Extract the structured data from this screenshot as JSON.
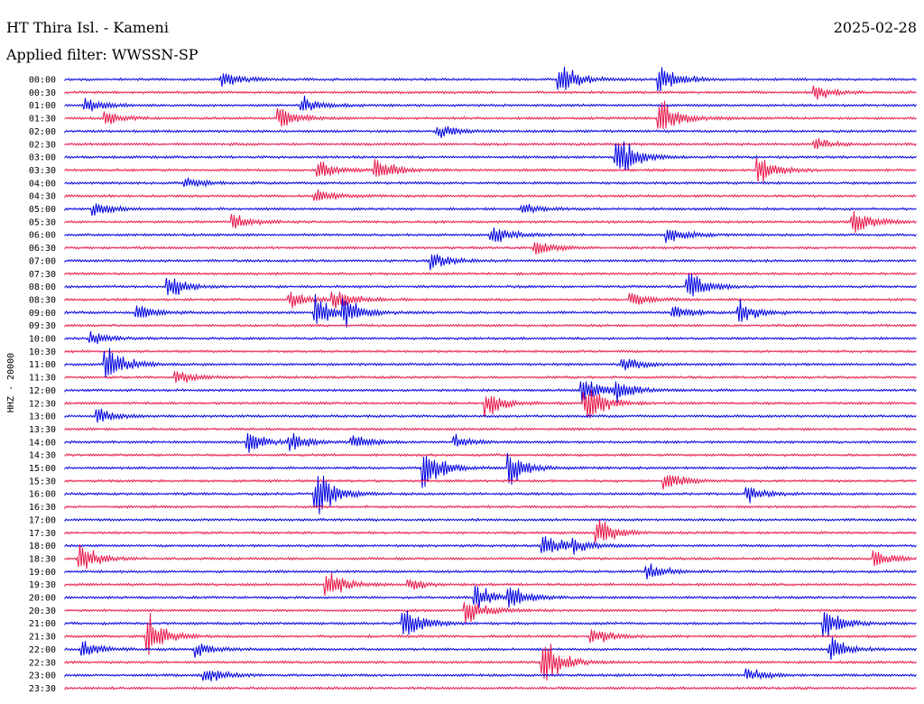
{
  "header": {
    "station": "HT Thira Isl. - Kameni",
    "date": "2025-02-28",
    "filter": "Applied filter: WWSSN-SP"
  },
  "chart_data": {
    "type": "helicorder",
    "ylabel": "HHZ - 20000",
    "row_labels": [
      "00:00",
      "00:30",
      "01:00",
      "01:30",
      "02:00",
      "02:30",
      "03:00",
      "03:30",
      "04:00",
      "04:30",
      "05:00",
      "05:30",
      "06:00",
      "06:30",
      "07:00",
      "07:30",
      "08:00",
      "08:30",
      "09:00",
      "09:30",
      "10:00",
      "10:30",
      "11:00",
      "11:30",
      "12:00",
      "12:30",
      "13:00",
      "13:30",
      "14:00",
      "14:30",
      "15:00",
      "15:30",
      "16:00",
      "16:30",
      "17:00",
      "17:30",
      "18:00",
      "18:30",
      "19:00",
      "19:30",
      "20:00",
      "20:30",
      "21:00",
      "21:30",
      "22:00",
      "22:30",
      "23:00",
      "23:30"
    ],
    "trace_colors": [
      "#0000e0",
      "#e8184a"
    ],
    "minutes_per_row": 30,
    "events": [
      {
        "row": 0,
        "minute": 5.6,
        "amp": 0.8
      },
      {
        "row": 0,
        "minute": 17.5,
        "amp": 1.3
      },
      {
        "row": 0,
        "minute": 21.0,
        "amp": 1.4
      },
      {
        "row": 1,
        "minute": 26.5,
        "amp": 0.6
      },
      {
        "row": 2,
        "minute": 0.8,
        "amp": 0.6
      },
      {
        "row": 2,
        "minute": 8.4,
        "amp": 0.8
      },
      {
        "row": 3,
        "minute": 1.5,
        "amp": 0.6
      },
      {
        "row": 3,
        "minute": 7.6,
        "amp": 1.0
      },
      {
        "row": 3,
        "minute": 21.0,
        "amp": 1.8
      },
      {
        "row": 4,
        "minute": 13.2,
        "amp": 0.6
      },
      {
        "row": 5,
        "minute": 26.5,
        "amp": 0.5
      },
      {
        "row": 6,
        "minute": 19.5,
        "amp": 2.0
      },
      {
        "row": 7,
        "minute": 9.0,
        "amp": 0.8
      },
      {
        "row": 7,
        "minute": 11.0,
        "amp": 1.1
      },
      {
        "row": 7,
        "minute": 24.5,
        "amp": 1.3
      },
      {
        "row": 8,
        "minute": 4.3,
        "amp": 0.5
      },
      {
        "row": 9,
        "minute": 8.9,
        "amp": 0.6
      },
      {
        "row": 10,
        "minute": 1.1,
        "amp": 0.6
      },
      {
        "row": 10,
        "minute": 16.2,
        "amp": 0.5
      },
      {
        "row": 11,
        "minute": 6.0,
        "amp": 0.7
      },
      {
        "row": 11,
        "minute": 27.8,
        "amp": 1.3
      },
      {
        "row": 12,
        "minute": 15.1,
        "amp": 0.8
      },
      {
        "row": 12,
        "minute": 21.3,
        "amp": 0.8
      },
      {
        "row": 13,
        "minute": 16.6,
        "amp": 0.7
      },
      {
        "row": 14,
        "minute": 13.0,
        "amp": 0.7
      },
      {
        "row": 16,
        "minute": 3.7,
        "amp": 1.0
      },
      {
        "row": 16,
        "minute": 22.0,
        "amp": 1.4
      },
      {
        "row": 17,
        "minute": 8.0,
        "amp": 0.8
      },
      {
        "row": 17,
        "minute": 9.5,
        "amp": 1.0
      },
      {
        "row": 17,
        "minute": 20.0,
        "amp": 0.7
      },
      {
        "row": 18,
        "minute": 2.6,
        "amp": 0.6
      },
      {
        "row": 18,
        "minute": 8.9,
        "amp": 1.5
      },
      {
        "row": 18,
        "minute": 9.9,
        "amp": 1.3
      },
      {
        "row": 18,
        "minute": 21.5,
        "amp": 0.6
      },
      {
        "row": 18,
        "minute": 23.8,
        "amp": 1.0
      },
      {
        "row": 20,
        "minute": 1.0,
        "amp": 0.5
      },
      {
        "row": 22,
        "minute": 1.5,
        "amp": 1.8
      },
      {
        "row": 22,
        "minute": 19.7,
        "amp": 0.7
      },
      {
        "row": 23,
        "minute": 4.0,
        "amp": 0.6
      },
      {
        "row": 24,
        "minute": 18.3,
        "amp": 1.2
      },
      {
        "row": 24,
        "minute": 19.5,
        "amp": 0.9
      },
      {
        "row": 25,
        "minute": 14.9,
        "amp": 1.2
      },
      {
        "row": 25,
        "minute": 18.4,
        "amp": 1.8
      },
      {
        "row": 26,
        "minute": 1.2,
        "amp": 0.6
      },
      {
        "row": 28,
        "minute": 6.5,
        "amp": 1.0
      },
      {
        "row": 28,
        "minute": 8.0,
        "amp": 0.8
      },
      {
        "row": 28,
        "minute": 10.2,
        "amp": 0.6
      },
      {
        "row": 28,
        "minute": 13.8,
        "amp": 0.6
      },
      {
        "row": 30,
        "minute": 12.7,
        "amp": 2.2
      },
      {
        "row": 30,
        "minute": 15.7,
        "amp": 1.4
      },
      {
        "row": 31,
        "minute": 21.2,
        "amp": 1.0
      },
      {
        "row": 32,
        "minute": 8.9,
        "amp": 2.2
      },
      {
        "row": 32,
        "minute": 24.1,
        "amp": 0.7
      },
      {
        "row": 35,
        "minute": 18.8,
        "amp": 1.3
      },
      {
        "row": 36,
        "minute": 16.9,
        "amp": 1.1
      },
      {
        "row": 36,
        "minute": 18.0,
        "amp": 0.6
      },
      {
        "row": 37,
        "minute": 0.6,
        "amp": 1.3
      },
      {
        "row": 37,
        "minute": 28.6,
        "amp": 0.8
      },
      {
        "row": 38,
        "minute": 20.6,
        "amp": 0.7
      },
      {
        "row": 39,
        "minute": 9.3,
        "amp": 1.4
      },
      {
        "row": 39,
        "minute": 12.2,
        "amp": 0.5
      },
      {
        "row": 40,
        "minute": 14.5,
        "amp": 1.2
      },
      {
        "row": 40,
        "minute": 15.7,
        "amp": 1.0
      },
      {
        "row": 41,
        "minute": 14.2,
        "amp": 1.2
      },
      {
        "row": 42,
        "minute": 12.0,
        "amp": 1.8
      },
      {
        "row": 42,
        "minute": 26.8,
        "amp": 1.3
      },
      {
        "row": 43,
        "minute": 3.0,
        "amp": 1.8
      },
      {
        "row": 43,
        "minute": 18.6,
        "amp": 0.9
      },
      {
        "row": 44,
        "minute": 0.7,
        "amp": 0.8
      },
      {
        "row": 44,
        "minute": 4.7,
        "amp": 0.7
      },
      {
        "row": 44,
        "minute": 27.0,
        "amp": 1.0
      },
      {
        "row": 45,
        "minute": 16.9,
        "amp": 2.2
      },
      {
        "row": 46,
        "minute": 5.0,
        "amp": 0.8
      },
      {
        "row": 46,
        "minute": 24.1,
        "amp": 0.6
      }
    ],
    "grid": false,
    "legend": "none"
  }
}
